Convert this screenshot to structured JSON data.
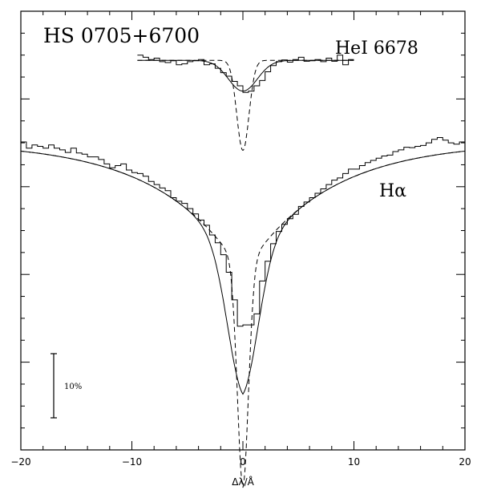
{
  "chart_data": {
    "type": "line",
    "title": "HS 0705+6700",
    "xlabel": "Δλ/Å",
    "ylabel": "",
    "xlim": [
      -20,
      20
    ],
    "ylim": [
      0,
      1
    ],
    "grid": false,
    "x_ticks": [
      "−20",
      "−10",
      "0",
      "10",
      "20"
    ],
    "scale_bar_label": "10%",
    "series": [
      {
        "name": "HeI 6678",
        "label": "HeI 6678",
        "x_range": [
          -9.5,
          10
        ],
        "continuum": 0.888,
        "fit_depth": 0.07,
        "fit_width": 1.3,
        "model_depth": 0.205,
        "model_width": 0.55,
        "observed": [
          [
            -9.5,
            0.9
          ],
          [
            -9,
            0.895
          ],
          [
            -8.5,
            0.89
          ],
          [
            -8,
            0.893
          ],
          [
            -7.5,
            0.885
          ],
          [
            -7,
            0.883
          ],
          [
            -6.5,
            0.887
          ],
          [
            -6,
            0.878
          ],
          [
            -5.5,
            0.88
          ],
          [
            -5,
            0.885
          ],
          [
            -4.5,
            0.887
          ],
          [
            -4,
            0.89
          ],
          [
            -3.5,
            0.878
          ],
          [
            -3,
            0.88
          ],
          [
            -2.5,
            0.87
          ],
          [
            -2,
            0.86
          ],
          [
            -1.5,
            0.852
          ],
          [
            -1,
            0.84
          ],
          [
            -0.5,
            0.83
          ],
          [
            0,
            0.815
          ],
          [
            0.5,
            0.818
          ],
          [
            1,
            0.83
          ],
          [
            1.5,
            0.842
          ],
          [
            2,
            0.862
          ],
          [
            2.5,
            0.876
          ],
          [
            3,
            0.885
          ],
          [
            3.5,
            0.889
          ],
          [
            4,
            0.884
          ],
          [
            4.5,
            0.89
          ],
          [
            5,
            0.895
          ],
          [
            5.5,
            0.886
          ],
          [
            6,
            0.887
          ],
          [
            6.5,
            0.89
          ],
          [
            7,
            0.885
          ],
          [
            7.5,
            0.893
          ],
          [
            8,
            0.886
          ],
          [
            8.5,
            0.9
          ],
          [
            9,
            0.878
          ],
          [
            9.5,
            0.89
          ]
        ]
      },
      {
        "name": "Hα",
        "label": "Hα",
        "x_range": [
          -20,
          20
        ],
        "fit_depth": 0.275,
        "fit_width": 1.4,
        "model_depth": 0.488,
        "model_width": 0.5,
        "observed": [
          [
            -20,
            0.702
          ],
          [
            -19.5,
            0.688
          ],
          [
            -19,
            0.695
          ],
          [
            -18.5,
            0.692
          ],
          [
            -18,
            0.688
          ],
          [
            -17.5,
            0.695
          ],
          [
            -17,
            0.688
          ],
          [
            -16.5,
            0.684
          ],
          [
            -16,
            0.678
          ],
          [
            -15.5,
            0.688
          ],
          [
            -15,
            0.677
          ],
          [
            -14.5,
            0.674
          ],
          [
            -14,
            0.668
          ],
          [
            -13.5,
            0.668
          ],
          [
            -13,
            0.662
          ],
          [
            -12.5,
            0.652
          ],
          [
            -12,
            0.643
          ],
          [
            -11.5,
            0.648
          ],
          [
            -11,
            0.652
          ],
          [
            -10.5,
            0.638
          ],
          [
            -10,
            0.632
          ],
          [
            -9.5,
            0.63
          ],
          [
            -9,
            0.624
          ],
          [
            -8.5,
            0.612
          ],
          [
            -8,
            0.605
          ],
          [
            -7.5,
            0.597
          ],
          [
            -7,
            0.591
          ],
          [
            -6.5,
            0.575
          ],
          [
            -6,
            0.567
          ],
          [
            -5.5,
            0.562
          ],
          [
            -5,
            0.55
          ],
          [
            -4.5,
            0.538
          ],
          [
            -4,
            0.524
          ],
          [
            -3.5,
            0.512
          ],
          [
            -3,
            0.49
          ],
          [
            -2.5,
            0.472
          ],
          [
            -2,
            0.445
          ],
          [
            -1.5,
            0.405
          ],
          [
            -1,
            0.342
          ],
          [
            -0.5,
            0.282
          ],
          [
            0,
            0.285
          ],
          [
            0.5,
            0.285
          ],
          [
            1,
            0.31
          ],
          [
            1.5,
            0.385
          ],
          [
            2,
            0.43
          ],
          [
            2.5,
            0.47
          ],
          [
            3,
            0.498
          ],
          [
            3.5,
            0.514
          ],
          [
            4,
            0.527
          ],
          [
            4.5,
            0.537
          ],
          [
            5,
            0.555
          ],
          [
            5.5,
            0.565
          ],
          [
            6,
            0.575
          ],
          [
            6.5,
            0.585
          ],
          [
            7,
            0.595
          ],
          [
            7.5,
            0.605
          ],
          [
            8,
            0.615
          ],
          [
            8.5,
            0.62
          ],
          [
            9,
            0.63
          ],
          [
            9.5,
            0.64
          ],
          [
            10,
            0.64
          ],
          [
            10.5,
            0.648
          ],
          [
            11,
            0.655
          ],
          [
            11.5,
            0.66
          ],
          [
            12,
            0.665
          ],
          [
            12.5,
            0.67
          ],
          [
            13,
            0.672
          ],
          [
            13.5,
            0.68
          ],
          [
            14,
            0.684
          ],
          [
            14.5,
            0.69
          ],
          [
            15,
            0.689
          ],
          [
            15.5,
            0.692
          ],
          [
            16,
            0.694
          ],
          [
            16.5,
            0.7
          ],
          [
            17,
            0.708
          ],
          [
            17.5,
            0.712
          ],
          [
            18,
            0.706
          ],
          [
            18.5,
            0.7
          ],
          [
            19,
            0.697
          ],
          [
            19.5,
            0.702
          ]
        ]
      }
    ]
  }
}
